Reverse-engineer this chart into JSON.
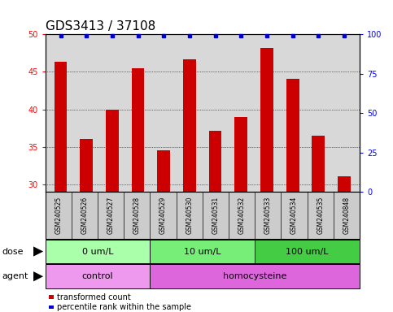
{
  "title": "GDS3413 / 37108",
  "samples": [
    "GSM240525",
    "GSM240526",
    "GSM240527",
    "GSM240528",
    "GSM240529",
    "GSM240530",
    "GSM240531",
    "GSM240532",
    "GSM240533",
    "GSM240534",
    "GSM240535",
    "GSM240848"
  ],
  "bar_values": [
    46.3,
    36.1,
    40.0,
    45.5,
    34.5,
    46.7,
    37.1,
    39.0,
    48.2,
    44.1,
    36.5,
    31.1
  ],
  "percentile_values": [
    99,
    99,
    99,
    99,
    99,
    99,
    99,
    99,
    99,
    99,
    99,
    99
  ],
  "bar_color": "#cc0000",
  "dot_color": "#0000cc",
  "ylim_left": [
    29,
    50
  ],
  "ylim_right": [
    0,
    100
  ],
  "yticks_left": [
    30,
    35,
    40,
    45,
    50
  ],
  "yticks_right": [
    0,
    25,
    50,
    75,
    100
  ],
  "dose_groups": [
    {
      "label": "0 um/L",
      "start": 0,
      "end": 4,
      "color": "#aaffaa"
    },
    {
      "label": "10 um/L",
      "start": 4,
      "end": 8,
      "color": "#77ee77"
    },
    {
      "label": "100 um/L",
      "start": 8,
      "end": 12,
      "color": "#44cc44"
    }
  ],
  "agent_groups": [
    {
      "label": "control",
      "start": 0,
      "end": 4,
      "color": "#ee99ee"
    },
    {
      "label": "homocysteine",
      "start": 4,
      "end": 12,
      "color": "#dd66dd"
    }
  ],
  "dose_label": "dose",
  "agent_label": "agent",
  "legend_items": [
    {
      "label": "transformed count",
      "color": "#cc0000"
    },
    {
      "label": "percentile rank within the sample",
      "color": "#0000cc"
    }
  ],
  "background_color": "#ffffff",
  "plot_bg_color": "#d8d8d8",
  "title_fontsize": 11,
  "tick_fontsize": 7,
  "label_fontsize": 8
}
